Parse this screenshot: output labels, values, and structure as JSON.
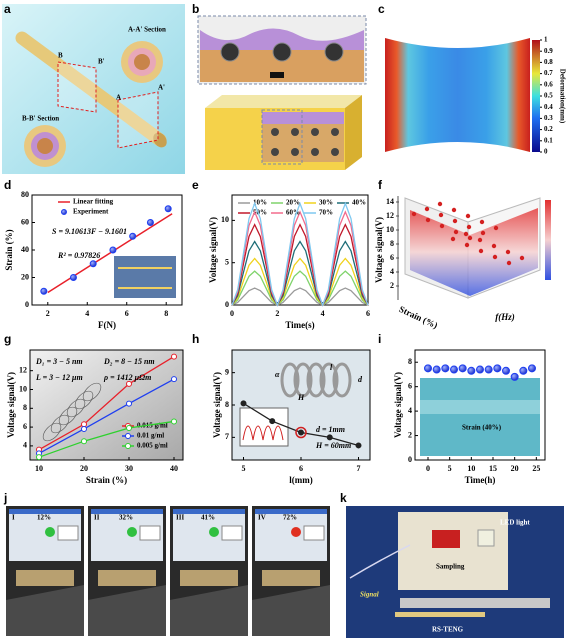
{
  "panel_labels": [
    "a",
    "b",
    "c",
    "d",
    "e",
    "f",
    "g",
    "h",
    "i",
    "j",
    "k"
  ],
  "panel_a": {
    "sections": [
      "A-A' Section",
      "B-B' Section"
    ],
    "markers": [
      "A",
      "A'",
      "B",
      "B'"
    ]
  },
  "panel_c": {
    "colorbar_label": "Deformation(mm)",
    "colorbar_ticks": [
      0,
      0.1,
      0.2,
      0.3,
      0.4,
      0.5,
      0.6,
      0.7,
      0.8,
      0.9,
      1
    ]
  },
  "panel_f": {
    "ylabel": "Voltage signal(V)",
    "xlabel": "Strain (%)",
    "zlabel": "f(Hz)",
    "yticks": [
      2,
      4,
      6,
      8,
      10,
      12,
      14
    ]
  },
  "panel_j": {
    "frames": [
      {
        "index": "I",
        "strain": "12%"
      },
      {
        "index": "II",
        "strain": "32%"
      },
      {
        "index": "III",
        "strain": "41%"
      },
      {
        "index": "IV",
        "strain": "72%"
      }
    ]
  },
  "panel_k": {
    "labels": [
      "LED light",
      "Sampling",
      "Signal",
      "RS-TENG"
    ]
  },
  "chart_data": [
    {
      "type": "scatter",
      "xlabel": "F(N)",
      "ylabel": "Strain (%)",
      "xlim": [
        1.2,
        8.8
      ],
      "ylim": [
        0,
        80
      ],
      "xticks": [
        2,
        4,
        6,
        8
      ],
      "yticks": [
        0,
        20,
        40,
        60,
        80
      ],
      "annotations": [
        "S = 9.10613F − 9.1601",
        "R² = 0.97826"
      ],
      "series": [
        {
          "name": "Linear fitting",
          "color": "#e8202a",
          "style": "line",
          "x": [
            2.0,
            8.3
          ],
          "values": [
            9.1,
            66.4
          ]
        },
        {
          "name": "Experiment",
          "color": "#1f3ff0",
          "style": "points",
          "x": [
            1.8,
            3.3,
            4.3,
            5.3,
            6.3,
            7.2,
            8.1
          ],
          "values": [
            10,
            20,
            30,
            40,
            50,
            60,
            70
          ]
        }
      ]
    },
    {
      "type": "line",
      "xlabel": "Time(s)",
      "ylabel": "Voltage signal(V)",
      "xlim": [
        0,
        6
      ],
      "ylim": [
        0,
        13
      ],
      "xticks": [
        0,
        2,
        4,
        6
      ],
      "yticks": [
        0,
        5,
        10
      ],
      "x": [
        0,
        0.25,
        0.5,
        0.75,
        1,
        1.25,
        1.5,
        1.75,
        2,
        2.25,
        2.5,
        2.75,
        3,
        3.25,
        3.5,
        3.75,
        4,
        4.25,
        4.5,
        4.75,
        5,
        5.25,
        5.5,
        5.75,
        6
      ],
      "series": [
        {
          "name": "10%",
          "color": "#9a9a9a",
          "values": [
            0,
            0.3,
            1,
            1.7,
            2,
            1.7,
            1,
            0.3,
            0,
            0.3,
            1,
            1.7,
            2,
            1.7,
            1,
            0.3,
            0,
            0.3,
            1,
            1.7,
            2,
            1.7,
            1,
            0.3,
            0
          ]
        },
        {
          "name": "20%",
          "color": "#7fd36b",
          "values": [
            0,
            0.6,
            2,
            3.4,
            4,
            3.4,
            2,
            0.6,
            0,
            0.6,
            2,
            3.4,
            4,
            3.4,
            2,
            0.6,
            0,
            0.6,
            2,
            3.4,
            4,
            3.4,
            2,
            0.6,
            0
          ]
        },
        {
          "name": "30%",
          "color": "#f0d21e",
          "values": [
            0,
            0.8,
            2.8,
            4.7,
            5.5,
            4.7,
            2.8,
            0.8,
            0,
            0.8,
            2.8,
            4.7,
            5.5,
            4.7,
            2.8,
            0.8,
            0,
            0.8,
            2.8,
            4.7,
            5.5,
            4.7,
            2.8,
            0.8,
            0
          ]
        },
        {
          "name": "40%",
          "color": "#1e6e78",
          "values": [
            0,
            1.1,
            3.8,
            6.4,
            7.5,
            6.4,
            3.8,
            1.1,
            0,
            1.1,
            3.8,
            6.4,
            7.5,
            6.4,
            3.8,
            1.1,
            0,
            1.1,
            3.8,
            6.4,
            7.5,
            6.4,
            3.8,
            1.1,
            0
          ]
        },
        {
          "name": "50%",
          "color": "#c0182a",
          "values": [
            0,
            1.4,
            4.8,
            8.1,
            9.5,
            8.1,
            4.8,
            1.4,
            0,
            1.4,
            4.8,
            8.1,
            9.5,
            8.1,
            4.8,
            1.4,
            0,
            1.4,
            4.8,
            8.1,
            9.5,
            8.1,
            4.8,
            1.4,
            0
          ]
        },
        {
          "name": "60%",
          "color": "#f26a8c",
          "values": [
            0,
            1.6,
            5.5,
            9.4,
            11,
            9.4,
            5.5,
            1.6,
            0,
            1.6,
            5.5,
            9.4,
            11,
            9.4,
            5.5,
            1.6,
            0,
            1.6,
            5.5,
            9.4,
            11,
            9.4,
            5.5,
            1.6,
            0
          ]
        },
        {
          "name": "70%",
          "color": "#7fc8f0",
          "values": [
            0,
            1.8,
            6,
            10.2,
            12,
            10.2,
            6,
            1.8,
            0,
            1.8,
            6,
            10.2,
            12,
            10.2,
            6,
            1.8,
            0,
            1.8,
            6,
            10.2,
            12,
            10.2,
            6,
            1.8,
            0
          ]
        }
      ]
    },
    {
      "type": "line",
      "markers": true,
      "xlabel": "Strain (%)",
      "ylabel": "Voltage signal(V)",
      "xlim": [
        8,
        42
      ],
      "ylim": [
        2.5,
        14.2
      ],
      "xticks": [
        10,
        20,
        30,
        40
      ],
      "yticks": [
        4,
        6,
        8,
        10,
        12
      ],
      "annotations": [
        "D₁ = 3 − 5 nm",
        "D₂ = 8 − 15 nm",
        "L = 3 − 12 μm",
        "ρ = 1412 μΩm"
      ],
      "x": [
        10,
        20,
        30,
        40
      ],
      "series": [
        {
          "name": "0.015 g/ml",
          "color": "#e8202a",
          "values": [
            3.6,
            6.3,
            10.6,
            13.5
          ]
        },
        {
          "name": "0.01 g/ml",
          "color": "#1f3ff0",
          "values": [
            3.2,
            5.8,
            8.5,
            11.1
          ]
        },
        {
          "name": "0.005 g/ml",
          "color": "#2ed12e",
          "values": [
            2.8,
            4.5,
            5.9,
            6.6
          ]
        }
      ]
    },
    {
      "type": "line",
      "markers": true,
      "xlabel": "l(mm)",
      "ylabel": "Voltage signal(V)",
      "xlim": [
        4.8,
        7.2
      ],
      "ylim": [
        6.3,
        9.7
      ],
      "xticks": [
        5,
        6,
        7
      ],
      "yticks": [
        7,
        8,
        9
      ],
      "annotations": [
        "d = 1mm",
        "H = 60mm",
        "α",
        "H",
        "l",
        "d"
      ],
      "x": [
        5,
        5.5,
        6,
        6.5,
        7
      ],
      "series": [
        {
          "color": "#222222",
          "values": [
            8.05,
            7.5,
            7.15,
            7.0,
            6.75
          ]
        }
      ]
    },
    {
      "type": "scatter",
      "xlabel": "Time(h)",
      "ylabel": "Voltage signal(V)",
      "xlim": [
        -3,
        27
      ],
      "ylim": [
        0,
        9
      ],
      "xticks": [
        0,
        5,
        10,
        15,
        20,
        25
      ],
      "yticks": [
        0,
        2,
        4,
        6,
        8
      ],
      "annotations": [
        "Strain (40%)"
      ],
      "x": [
        0,
        2,
        4,
        6,
        8,
        10,
        12,
        14,
        16,
        18,
        20,
        22,
        24
      ],
      "series": [
        {
          "color": "#1f3ff0",
          "values": [
            7.5,
            7.4,
            7.5,
            7.4,
            7.5,
            7.3,
            7.4,
            7.4,
            7.5,
            7.3,
            6.8,
            7.3,
            7.5
          ]
        }
      ]
    }
  ]
}
